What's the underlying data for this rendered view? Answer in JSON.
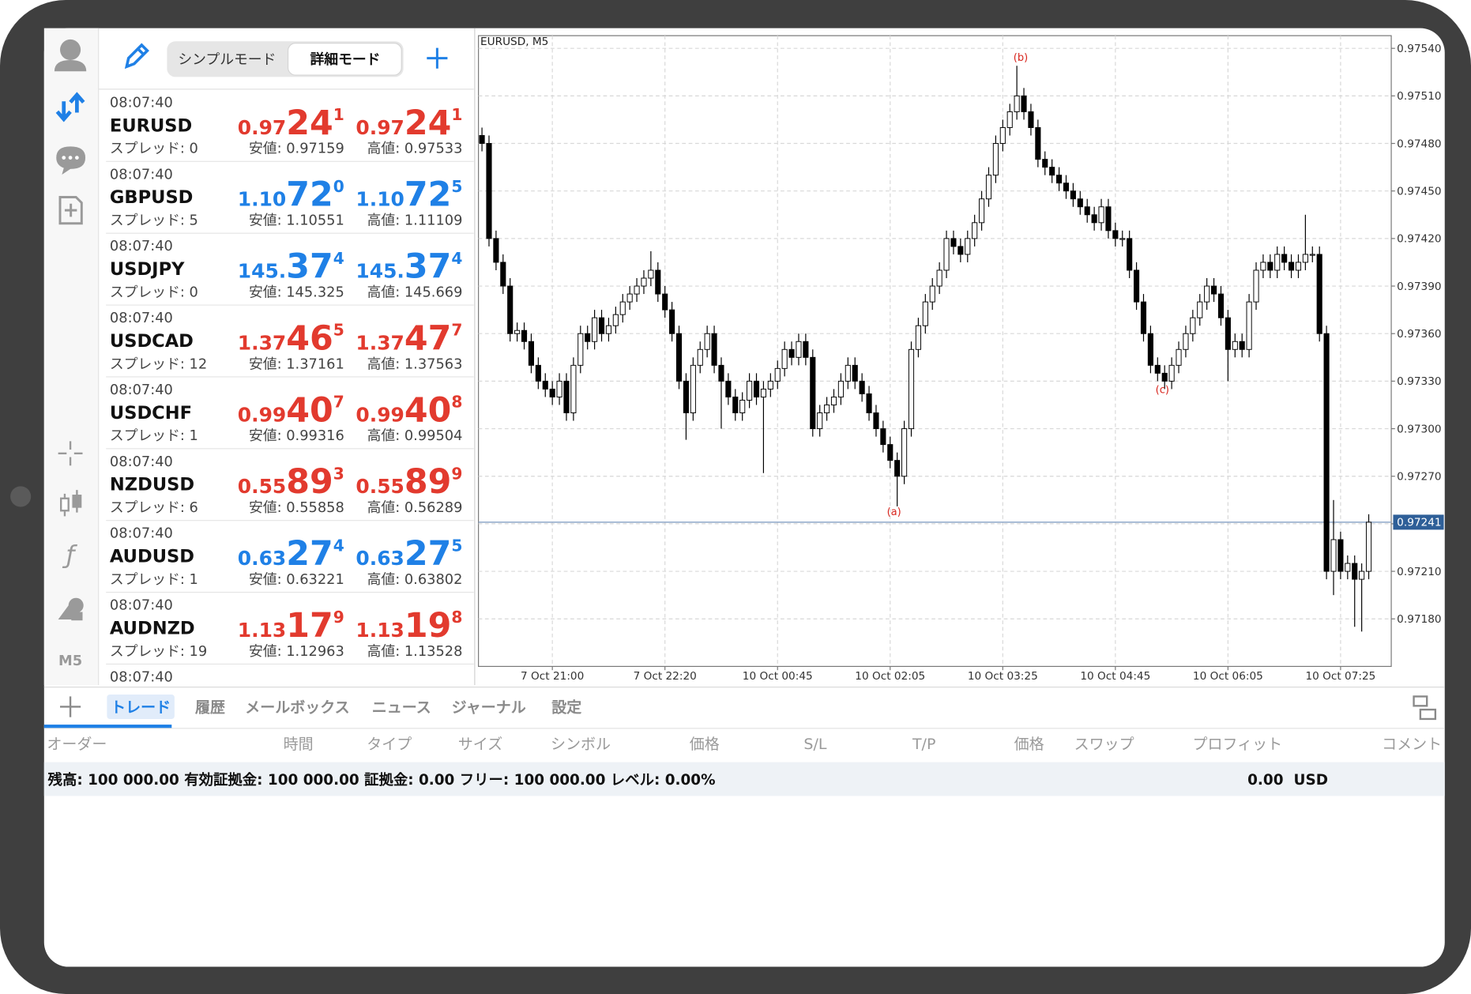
{
  "header": {
    "modes": [
      "シンプルモード",
      "詳細モード"
    ]
  },
  "sidebar": {
    "timeframe": "M5"
  },
  "quotes": [
    {
      "time": "08:07:40",
      "symbol": "EURUSD",
      "spread": "スプレッド: 0",
      "bid": {
        "small": "0.97",
        "big": "24",
        "pip": "1"
      },
      "ask": {
        "small": "0.97",
        "big": "24",
        "pip": "1"
      },
      "low": "安値: 0.97159",
      "high": "高値: 0.97533",
      "color": "#e23a2e"
    },
    {
      "time": "08:07:40",
      "symbol": "GBPUSD",
      "spread": "スプレッド: 5",
      "bid": {
        "small": "1.10",
        "big": "72",
        "pip": "0"
      },
      "ask": {
        "small": "1.10",
        "big": "72",
        "pip": "5"
      },
      "low": "安値: 1.10551",
      "high": "高値: 1.11109",
      "color": "#1f80e6"
    },
    {
      "time": "08:07:40",
      "symbol": "USDJPY",
      "spread": "スプレッド: 0",
      "bid": {
        "small": "145.",
        "big": "37",
        "pip": "4"
      },
      "ask": {
        "small": "145.",
        "big": "37",
        "pip": "4"
      },
      "low": "安値: 145.325",
      "high": "高値: 145.669",
      "color": "#1f80e6"
    },
    {
      "time": "08:07:40",
      "symbol": "USDCAD",
      "spread": "スプレッド: 12",
      "bid": {
        "small": "1.37",
        "big": "46",
        "pip": "5"
      },
      "ask": {
        "small": "1.37",
        "big": "47",
        "pip": "7"
      },
      "low": "安値: 1.37161",
      "high": "高値: 1.37563",
      "color": "#e23a2e"
    },
    {
      "time": "08:07:40",
      "symbol": "USDCHF",
      "spread": "スプレッド: 1",
      "bid": {
        "small": "0.99",
        "big": "40",
        "pip": "7"
      },
      "ask": {
        "small": "0.99",
        "big": "40",
        "pip": "8"
      },
      "low": "安値: 0.99316",
      "high": "高値: 0.99504",
      "color": "#e23a2e"
    },
    {
      "time": "08:07:40",
      "symbol": "NZDUSD",
      "spread": "スプレッド: 6",
      "bid": {
        "small": "0.55",
        "big": "89",
        "pip": "3"
      },
      "ask": {
        "small": "0.55",
        "big": "89",
        "pip": "9"
      },
      "low": "安値: 0.55858",
      "high": "高値: 0.56289",
      "color": "#e23a2e"
    },
    {
      "time": "08:07:40",
      "symbol": "AUDUSD",
      "spread": "スプレッド: 1",
      "bid": {
        "small": "0.63",
        "big": "27",
        "pip": "4"
      },
      "ask": {
        "small": "0.63",
        "big": "27",
        "pip": "5"
      },
      "low": "安値: 0.63221",
      "high": "高値: 0.63802",
      "color": "#1f80e6"
    },
    {
      "time": "08:07:40",
      "symbol": "AUDNZD",
      "spread": "スプレッド: 19",
      "bid": {
        "small": "1.13",
        "big": "17",
        "pip": "9"
      },
      "ask": {
        "small": "1.13",
        "big": "19",
        "pip": "8"
      },
      "low": "安値: 1.12963",
      "high": "高値: 1.13528",
      "color": "#e23a2e"
    },
    {
      "time": "08:07:40"
    }
  ],
  "chart": {
    "title": "EURUSD, M5",
    "ylim": [
      0.9715,
      0.97548
    ],
    "xlim": [
      -0.5,
      129.2
    ],
    "yticks": [
      {
        "value": 0.9754,
        "label": "0.97540"
      },
      {
        "value": 0.9751,
        "label": "0.97510"
      },
      {
        "value": 0.9748,
        "label": "0.97480"
      },
      {
        "value": 0.9745,
        "label": "0.97450"
      },
      {
        "value": 0.9742,
        "label": "0.97420"
      },
      {
        "value": 0.9739,
        "label": "0.97390"
      },
      {
        "value": 0.9736,
        "label": "0.97360"
      },
      {
        "value": 0.9733,
        "label": "0.97330"
      },
      {
        "value": 0.973,
        "label": "0.97300"
      },
      {
        "value": 0.9727,
        "label": "0.97270"
      },
      {
        "value": 0.9724,
        "label": "0.97240"
      },
      {
        "value": 0.9721,
        "label": "0.97210"
      },
      {
        "value": 0.9718,
        "label": "0.97180"
      }
    ],
    "xticks": [
      {
        "value": 10,
        "label": "7 Oct 21:00"
      },
      {
        "value": 26,
        "label": "7 Oct 22:20"
      },
      {
        "value": 42,
        "label": "10 Oct 00:45"
      },
      {
        "value": 58,
        "label": "10 Oct 02:05"
      },
      {
        "value": 74,
        "label": "10 Oct 03:25"
      },
      {
        "value": 90,
        "label": "10 Oct 04:45"
      },
      {
        "value": 106,
        "label": "10 Oct 06:05"
      },
      {
        "value": 122,
        "label": "10 Oct 07:25"
      }
    ],
    "current_price": 0.97241,
    "grid": true,
    "annotations": [
      "(a)",
      "(b)",
      "(c)"
    ],
    "candles": [
      [
        0.97485,
        0.9749,
        0.97475,
        0.9748
      ],
      [
        0.9748,
        0.97485,
        0.97415,
        0.9742
      ],
      [
        0.9742,
        0.97425,
        0.974,
        0.97405
      ],
      [
        0.97405,
        0.9741,
        0.97385,
        0.9739
      ],
      [
        0.9739,
        0.97395,
        0.97355,
        0.9736
      ],
      [
        0.9736,
        0.97367,
        0.97355,
        0.97362
      ],
      [
        0.97362,
        0.97367,
        0.9735,
        0.97355
      ],
      [
        0.97355,
        0.9736,
        0.97335,
        0.9734
      ],
      [
        0.9734,
        0.97345,
        0.97325,
        0.9733
      ],
      [
        0.9733,
        0.97335,
        0.9732,
        0.97325
      ],
      [
        0.97325,
        0.9733,
        0.97315,
        0.9732
      ],
      [
        0.9732,
        0.97335,
        0.97315,
        0.9733
      ],
      [
        0.9733,
        0.97335,
        0.97305,
        0.9731
      ],
      [
        0.9731,
        0.97345,
        0.97305,
        0.9734
      ],
      [
        0.9734,
        0.97365,
        0.97335,
        0.9736
      ],
      [
        0.9736,
        0.97365,
        0.9735,
        0.97355
      ],
      [
        0.97355,
        0.97375,
        0.9735,
        0.9737
      ],
      [
        0.9737,
        0.97375,
        0.97355,
        0.9736
      ],
      [
        0.9736,
        0.9737,
        0.97355,
        0.97365
      ],
      [
        0.97365,
        0.97377,
        0.9736,
        0.97372
      ],
      [
        0.97372,
        0.97385,
        0.97367,
        0.9738
      ],
      [
        0.9738,
        0.9739,
        0.97375,
        0.97385
      ],
      [
        0.97385,
        0.97395,
        0.9738,
        0.9739
      ],
      [
        0.9739,
        0.974,
        0.97385,
        0.97395
      ],
      [
        0.97395,
        0.97412,
        0.9739,
        0.974
      ],
      [
        0.974,
        0.97405,
        0.9738,
        0.97385
      ],
      [
        0.97385,
        0.9739,
        0.9737,
        0.97375
      ],
      [
        0.97375,
        0.9738,
        0.97355,
        0.9736
      ],
      [
        0.9736,
        0.97365,
        0.97325,
        0.9733
      ],
      [
        0.9733,
        0.97335,
        0.97293,
        0.9731
      ],
      [
        0.9731,
        0.97345,
        0.97305,
        0.9734
      ],
      [
        0.9734,
        0.97355,
        0.97335,
        0.9735
      ],
      [
        0.9735,
        0.97365,
        0.97345,
        0.9736
      ],
      [
        0.9736,
        0.97365,
        0.97335,
        0.9734
      ],
      [
        0.9734,
        0.97345,
        0.973,
        0.9733
      ],
      [
        0.9733,
        0.97335,
        0.97315,
        0.9732
      ],
      [
        0.9732,
        0.97325,
        0.97305,
        0.9731
      ],
      [
        0.9731,
        0.97323,
        0.97305,
        0.97318
      ],
      [
        0.97318,
        0.97335,
        0.97313,
        0.9733
      ],
      [
        0.9733,
        0.97335,
        0.97315,
        0.9732
      ],
      [
        0.9732,
        0.9733,
        0.97272,
        0.97325
      ],
      [
        0.97325,
        0.97335,
        0.9732,
        0.9733
      ],
      [
        0.9733,
        0.97343,
        0.97325,
        0.97338
      ],
      [
        0.97338,
        0.97355,
        0.97333,
        0.9735
      ],
      [
        0.9735,
        0.97355,
        0.9734,
        0.97345
      ],
      [
        0.97345,
        0.9736,
        0.9734,
        0.97355
      ],
      [
        0.97355,
        0.9736,
        0.9734,
        0.97345
      ],
      [
        0.97345,
        0.9735,
        0.97295,
        0.973
      ],
      [
        0.973,
        0.97315,
        0.97295,
        0.9731
      ],
      [
        0.9731,
        0.9732,
        0.97305,
        0.97315
      ],
      [
        0.97315,
        0.97325,
        0.9731,
        0.9732
      ],
      [
        0.9732,
        0.97335,
        0.97315,
        0.9733
      ],
      [
        0.9733,
        0.97345,
        0.97325,
        0.9734
      ],
      [
        0.9734,
        0.97345,
        0.97325,
        0.9733
      ],
      [
        0.9733,
        0.97335,
        0.97317,
        0.97322
      ],
      [
        0.97322,
        0.97327,
        0.97305,
        0.9731
      ],
      [
        0.9731,
        0.97315,
        0.97295,
        0.973
      ],
      [
        0.973,
        0.97305,
        0.97285,
        0.9729
      ],
      [
        0.9729,
        0.97295,
        0.97275,
        0.9728
      ],
      [
        0.9728,
        0.97285,
        0.97251,
        0.9727
      ],
      [
        0.9727,
        0.97305,
        0.97265,
        0.973
      ],
      [
        0.973,
        0.97355,
        0.97295,
        0.9735
      ],
      [
        0.9735,
        0.9737,
        0.97345,
        0.97365
      ],
      [
        0.97365,
        0.97385,
        0.9736,
        0.9738
      ],
      [
        0.9738,
        0.97395,
        0.97375,
        0.9739
      ],
      [
        0.9739,
        0.97405,
        0.97385,
        0.974
      ],
      [
        0.974,
        0.97425,
        0.97395,
        0.9742
      ],
      [
        0.9742,
        0.97425,
        0.9741,
        0.97415
      ],
      [
        0.97415,
        0.9742,
        0.97405,
        0.9741
      ],
      [
        0.9741,
        0.97425,
        0.97405,
        0.9742
      ],
      [
        0.9742,
        0.97435,
        0.97415,
        0.9743
      ],
      [
        0.9743,
        0.9745,
        0.97425,
        0.97445
      ],
      [
        0.97445,
        0.97465,
        0.9744,
        0.9746
      ],
      [
        0.9746,
        0.97485,
        0.97455,
        0.9748
      ],
      [
        0.9748,
        0.97495,
        0.97475,
        0.9749
      ],
      [
        0.9749,
        0.97505,
        0.97485,
        0.975
      ],
      [
        0.975,
        0.97529,
        0.97495,
        0.9751
      ],
      [
        0.9751,
        0.97515,
        0.97495,
        0.975
      ],
      [
        0.975,
        0.97505,
        0.97485,
        0.9749
      ],
      [
        0.9749,
        0.97495,
        0.97465,
        0.9747
      ],
      [
        0.9747,
        0.97475,
        0.9746,
        0.97465
      ],
      [
        0.97465,
        0.9747,
        0.97455,
        0.9746
      ],
      [
        0.9746,
        0.97465,
        0.9745,
        0.97455
      ],
      [
        0.97455,
        0.9746,
        0.97445,
        0.9745
      ],
      [
        0.9745,
        0.97455,
        0.9744,
        0.97445
      ],
      [
        0.97445,
        0.9745,
        0.97435,
        0.9744
      ],
      [
        0.9744,
        0.97445,
        0.9743,
        0.97435
      ],
      [
        0.97435,
        0.9744,
        0.97425,
        0.9743
      ],
      [
        0.9743,
        0.97445,
        0.97425,
        0.9744
      ],
      [
        0.9744,
        0.97445,
        0.9742,
        0.97425
      ],
      [
        0.97425,
        0.9743,
        0.97415,
        0.9742
      ],
      [
        0.9742,
        0.97425,
        0.97415,
        0.9742
      ],
      [
        0.9742,
        0.97425,
        0.97395,
        0.974
      ],
      [
        0.974,
        0.97405,
        0.97375,
        0.9738
      ],
      [
        0.9738,
        0.97385,
        0.97355,
        0.9736
      ],
      [
        0.9736,
        0.97365,
        0.97335,
        0.9734
      ],
      [
        0.9734,
        0.97345,
        0.9733,
        0.97335
      ],
      [
        0.97335,
        0.9734,
        0.97325,
        0.9733
      ],
      [
        0.9733,
        0.97345,
        0.97325,
        0.9734
      ],
      [
        0.9734,
        0.97355,
        0.97335,
        0.9735
      ],
      [
        0.9735,
        0.97365,
        0.97345,
        0.9736
      ],
      [
        0.9736,
        0.97375,
        0.97355,
        0.9737
      ],
      [
        0.9737,
        0.97385,
        0.97365,
        0.9738
      ],
      [
        0.9738,
        0.97395,
        0.97375,
        0.9739
      ],
      [
        0.9739,
        0.97395,
        0.9738,
        0.97385
      ],
      [
        0.97385,
        0.9739,
        0.97365,
        0.9737
      ],
      [
        0.9737,
        0.97375,
        0.9733,
        0.9735
      ],
      [
        0.9735,
        0.9736,
        0.97345,
        0.97355
      ],
      [
        0.97355,
        0.9736,
        0.97345,
        0.9735
      ],
      [
        0.9735,
        0.97385,
        0.97345,
        0.9738
      ],
      [
        0.9738,
        0.97405,
        0.97375,
        0.974
      ],
      [
        0.974,
        0.9741,
        0.97395,
        0.97405
      ],
      [
        0.97405,
        0.9741,
        0.97395,
        0.974
      ],
      [
        0.974,
        0.97415,
        0.97395,
        0.9741
      ],
      [
        0.9741,
        0.97415,
        0.974,
        0.97405
      ],
      [
        0.97405,
        0.9741,
        0.97395,
        0.974
      ],
      [
        0.974,
        0.9741,
        0.97395,
        0.97405
      ],
      [
        0.97405,
        0.97435,
        0.974,
        0.9741
      ],
      [
        0.9741,
        0.97415,
        0.97405,
        0.9741
      ],
      [
        0.9741,
        0.97415,
        0.97355,
        0.9736
      ],
      [
        0.9736,
        0.97365,
        0.97205,
        0.9721
      ],
      [
        0.9721,
        0.97255,
        0.97195,
        0.9723
      ],
      [
        0.9723,
        0.97235,
        0.97205,
        0.9721
      ],
      [
        0.9721,
        0.9722,
        0.97205,
        0.97215
      ],
      [
        0.97215,
        0.9722,
        0.97175,
        0.97205
      ],
      [
        0.97205,
        0.97215,
        0.97172,
        0.9721
      ],
      [
        0.9721,
        0.97246,
        0.97205,
        0.97241
      ]
    ]
  },
  "toolbox": {
    "tabs": [
      "トレード",
      "履歴",
      "メールボックス",
      "ニュース",
      "ジャーナル",
      "設定"
    ],
    "active_tab": 0,
    "columns": [
      "オーダー",
      "時間",
      "タイプ",
      "サイズ",
      "シンボル",
      "価格",
      "S/L",
      "T/P",
      "価格",
      "スワップ",
      "プロフィット",
      "コメント"
    ],
    "summary": "残高: 100 000.00 有効証拠金: 100 000.00 証拠金: 0.00 フリー: 100 000.00 レベル: 0.00%",
    "total": "0.00",
    "currency": "USD"
  }
}
